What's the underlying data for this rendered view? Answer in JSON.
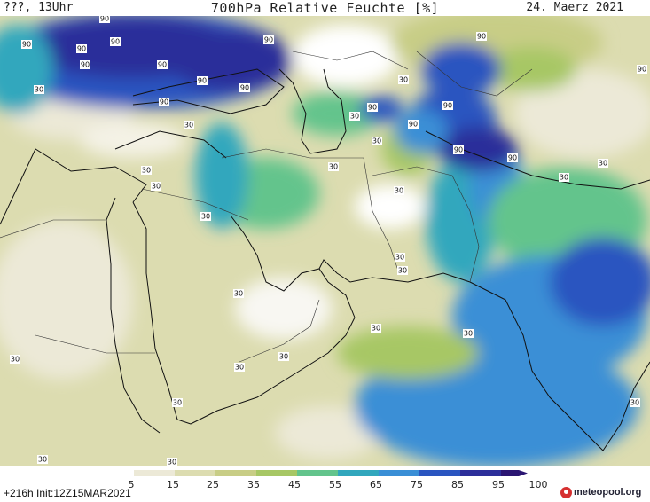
{
  "header": {
    "left": "???, 13Uhr",
    "title": "700hPa Relative Feuchte [%]",
    "date": "24. Maerz 2021"
  },
  "map": {
    "contour_labels": [
      "90",
      "90",
      "90",
      "90",
      "90",
      "90",
      "90",
      "90",
      "90",
      "90",
      "90",
      "90",
      "90",
      "90",
      "90",
      "90",
      "90",
      "30",
      "30",
      "30",
      "30",
      "30",
      "30",
      "30",
      "30",
      "30",
      "30",
      "30",
      "30",
      "30",
      "30",
      "30",
      "30",
      "30",
      "30",
      "30",
      "30",
      "30",
      "30",
      "30",
      "30"
    ]
  },
  "legend": {
    "ticks": [
      "5",
      "15",
      "25",
      "35",
      "45",
      "55",
      "65",
      "75",
      "85",
      "95",
      "100"
    ],
    "colors": [
      "#ffffff",
      "#ece9d7",
      "#dcdcb0",
      "#c8cd86",
      "#a7c765",
      "#63c48c",
      "#32a7bd",
      "#3a8fd6",
      "#2a55c0",
      "#2c2f9a",
      "#2a1572"
    ]
  },
  "footer": {
    "run": "+216h  Init:12Z15MAR2021",
    "brand": "meteopool.org"
  }
}
